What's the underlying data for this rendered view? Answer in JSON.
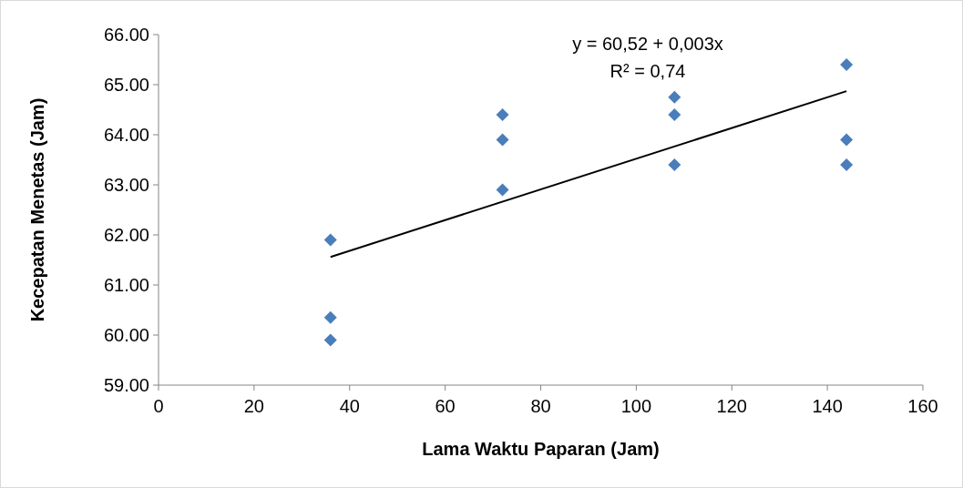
{
  "chart_data": {
    "type": "scatter",
    "xlabel": "Lama Waktu Paparan (Jam)",
    "ylabel": "Kecepatan Menetas (Jam)",
    "xlim": [
      0,
      160
    ],
    "xticks": [
      0,
      20,
      40,
      60,
      80,
      100,
      120,
      140,
      160
    ],
    "ylim": [
      59,
      66
    ],
    "yticks": [
      {
        "value": 59,
        "label": "59.00"
      },
      {
        "value": 60,
        "label": "60.00"
      },
      {
        "value": 61,
        "label": "61.00"
      },
      {
        "value": 62,
        "label": "62.00"
      },
      {
        "value": 63,
        "label": "63.00"
      },
      {
        "value": 64,
        "label": "64.00"
      },
      {
        "value": 65,
        "label": "65.00"
      },
      {
        "value": 66,
        "label": "66.00"
      }
    ],
    "grid": false,
    "marker": "diamond",
    "annotations": [
      "y = 60,52 + 0,003x",
      "R² = 0,74"
    ],
    "series": [
      {
        "color": "#4a7ebb",
        "x": [
          36,
          36,
          36,
          72,
          72,
          72,
          108,
          108,
          108,
          144,
          144,
          144
        ],
        "values": [
          61.9,
          60.35,
          59.9,
          64.4,
          63.9,
          62.9,
          64.75,
          64.4,
          63.4,
          65.4,
          63.9,
          63.4
        ]
      },
      {
        "type": "line",
        "color": "#000000",
        "x": [
          36,
          144
        ],
        "values": [
          61.56,
          64.87
        ],
        "line_style": "solid",
        "marker": "none"
      }
    ]
  }
}
